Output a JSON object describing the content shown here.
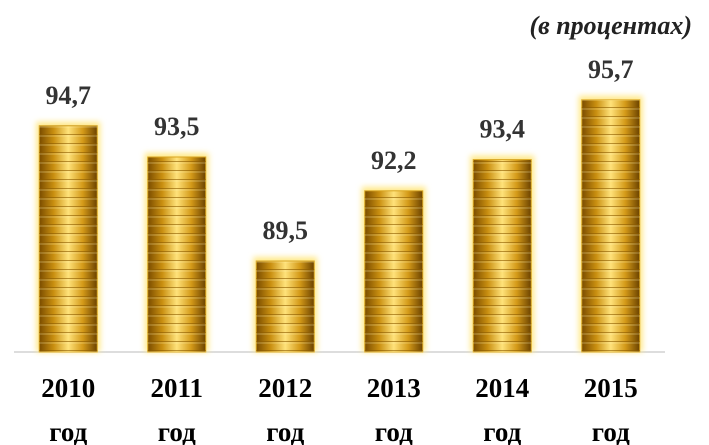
{
  "chart_data": {
    "type": "bar",
    "subtitle": "(в процентах)",
    "categories": [
      "2010 год",
      "2011 год",
      "2012 год",
      "2013 год",
      "2014 год",
      "2015 год"
    ],
    "values": [
      94.7,
      93.5,
      89.5,
      92.2,
      93.4,
      95.7
    ],
    "value_labels": [
      "94,7",
      "93,5",
      "89,5",
      "92,2",
      "93,4",
      "95,7"
    ],
    "color": "#d9a520",
    "ylim": [
      86,
      96
    ]
  }
}
